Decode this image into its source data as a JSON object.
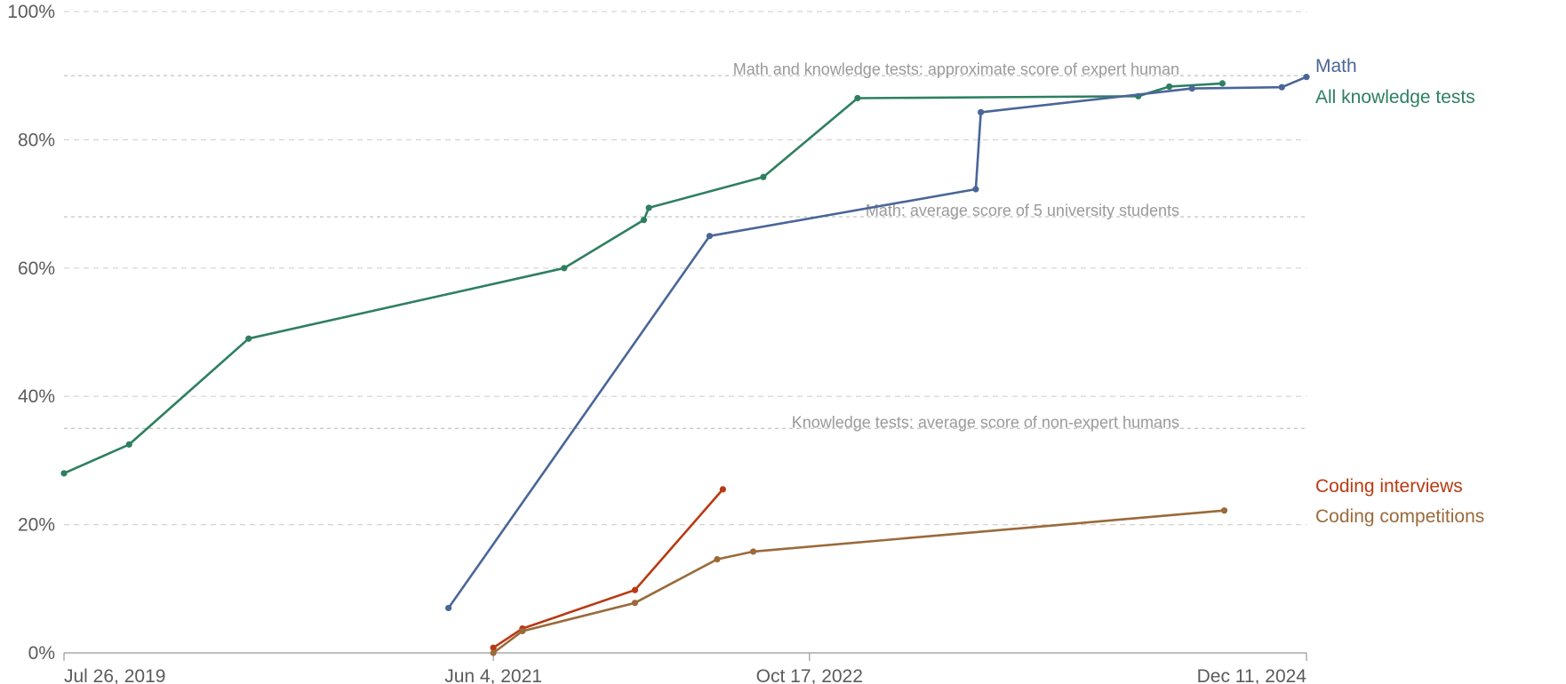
{
  "chart_data": {
    "type": "line",
    "title": "",
    "xlabel": "",
    "ylabel": "",
    "x_ticks": [
      {
        "date": "2019-07-26",
        "label": "Jul 26, 2019"
      },
      {
        "date": "2021-06-04",
        "label": "Jun 4, 2021"
      },
      {
        "date": "2022-10-17",
        "label": "Oct 17, 2022"
      },
      {
        "date": "2024-12-11",
        "label": "Dec 11, 2024"
      }
    ],
    "xlim": [
      "2019-07-26",
      "2024-12-11"
    ],
    "y_ticks": [
      {
        "value": 0,
        "label": "0%"
      },
      {
        "value": 20,
        "label": "20%"
      },
      {
        "value": 40,
        "label": "40%"
      },
      {
        "value": 60,
        "label": "60%"
      },
      {
        "value": 80,
        "label": "80%"
      },
      {
        "value": 100,
        "label": "100%"
      }
    ],
    "ylim": [
      0,
      100
    ],
    "grid": true,
    "reference_lines": [
      {
        "value": 90,
        "label": "Math and knowledge tests: approximate score of expert human"
      },
      {
        "value": 68,
        "label": "Math: average score of 5 university students"
      },
      {
        "value": 35,
        "label": "Knowledge tests: average score of non-expert humans"
      }
    ],
    "series": [
      {
        "name": "All knowledge tests",
        "color": "#2e7f60",
        "points": [
          {
            "x": "2019-07-26",
            "y": 28.0
          },
          {
            "x": "2019-11-06",
            "y": 32.5
          },
          {
            "x": "2020-05-13",
            "y": 49.0
          },
          {
            "x": "2021-09-24",
            "y": 60.0
          },
          {
            "x": "2022-01-28",
            "y": 67.5
          },
          {
            "x": "2022-02-05",
            "y": 69.4
          },
          {
            "x": "2022-08-05",
            "y": 74.2
          },
          {
            "x": "2023-01-01",
            "y": 86.5
          },
          {
            "x": "2024-03-20",
            "y": 86.8
          },
          {
            "x": "2024-05-08",
            "y": 88.3
          },
          {
            "x": "2024-07-31",
            "y": 88.8
          }
        ]
      },
      {
        "name": "Math",
        "color": "#4a6698",
        "points": [
          {
            "x": "2021-03-25",
            "y": 7.0
          },
          {
            "x": "2022-05-12",
            "y": 65.0
          },
          {
            "x": "2023-07-07",
            "y": 72.3
          },
          {
            "x": "2023-07-15",
            "y": 84.3
          },
          {
            "x": "2024-06-13",
            "y": 88.0
          },
          {
            "x": "2024-11-02",
            "y": 88.2
          },
          {
            "x": "2024-12-11",
            "y": 89.8
          }
        ]
      },
      {
        "name": "Coding interviews",
        "color": "#b83a12",
        "points": [
          {
            "x": "2021-06-04",
            "y": 0.8
          },
          {
            "x": "2021-07-20",
            "y": 3.8
          },
          {
            "x": "2022-01-14",
            "y": 9.8
          },
          {
            "x": "2022-06-02",
            "y": 25.5
          }
        ]
      },
      {
        "name": "Coding competitions",
        "color": "#9a6a3a",
        "points": [
          {
            "x": "2021-06-04",
            "y": 0.0
          },
          {
            "x": "2021-07-20",
            "y": 3.4
          },
          {
            "x": "2022-01-14",
            "y": 7.8
          },
          {
            "x": "2022-05-24",
            "y": 14.6
          },
          {
            "x": "2022-07-20",
            "y": 15.8
          },
          {
            "x": "2024-08-03",
            "y": 22.2
          }
        ]
      }
    ]
  }
}
